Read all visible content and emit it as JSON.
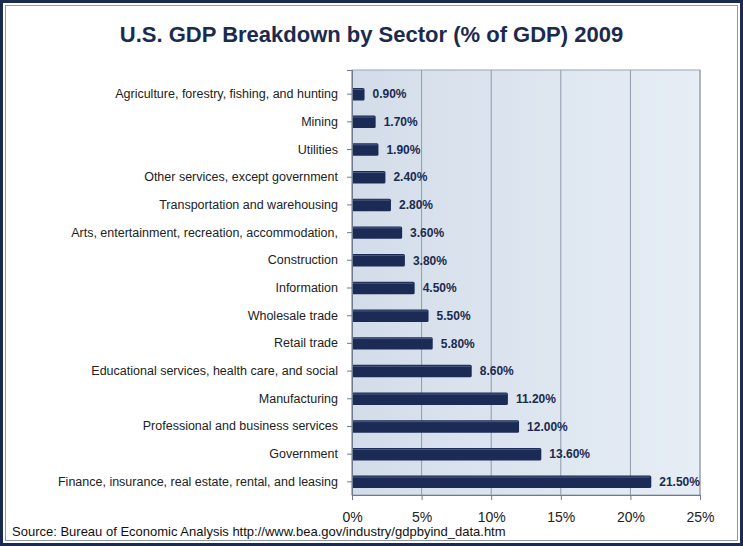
{
  "chart_data": {
    "type": "bar",
    "title": "U.S. GDP Breakdown by Sector (% of GDP) 2009",
    "source": "Source: Bureau of Economic Analysis http://www.bea.gov/industry/gdpbyind_data.htm",
    "orientation": "horizontal",
    "categories": [
      "Agriculture, forestry, fishing, and hunting",
      "Mining",
      "Utilities",
      "Other services, except government",
      "Transportation and warehousing",
      "Arts, entertainment, recreation, accommodation,",
      "Construction",
      "Information",
      "Wholesale trade",
      "Retail trade",
      "Educational services, health care, and social",
      "Manufacturing",
      "Professional and business services",
      "Government",
      "Finance, insurance, real estate, rental, and leasing"
    ],
    "values": [
      0.9,
      1.7,
      1.9,
      2.4,
      2.8,
      3.6,
      3.8,
      4.5,
      5.5,
      5.8,
      8.6,
      11.2,
      12.0,
      13.6,
      21.5
    ],
    "value_labels": [
      "0.90%",
      "1.70%",
      "1.90%",
      "2.40%",
      "2.80%",
      "3.60%",
      "3.80%",
      "4.50%",
      "5.50%",
      "5.80%",
      "8.60%",
      "11.20%",
      "12.00%",
      "13.60%",
      "21.50%"
    ],
    "data_labels": true,
    "color": "#1c2b55",
    "xlim": [
      0,
      25
    ],
    "xticks": [
      {
        "value": 0,
        "label": "0%"
      },
      {
        "value": 5,
        "label": "5%"
      },
      {
        "value": 10,
        "label": "10%"
      },
      {
        "value": 15,
        "label": "15%"
      },
      {
        "value": 20,
        "label": "20%"
      },
      {
        "value": 25,
        "label": "25%"
      }
    ],
    "grid": true
  }
}
